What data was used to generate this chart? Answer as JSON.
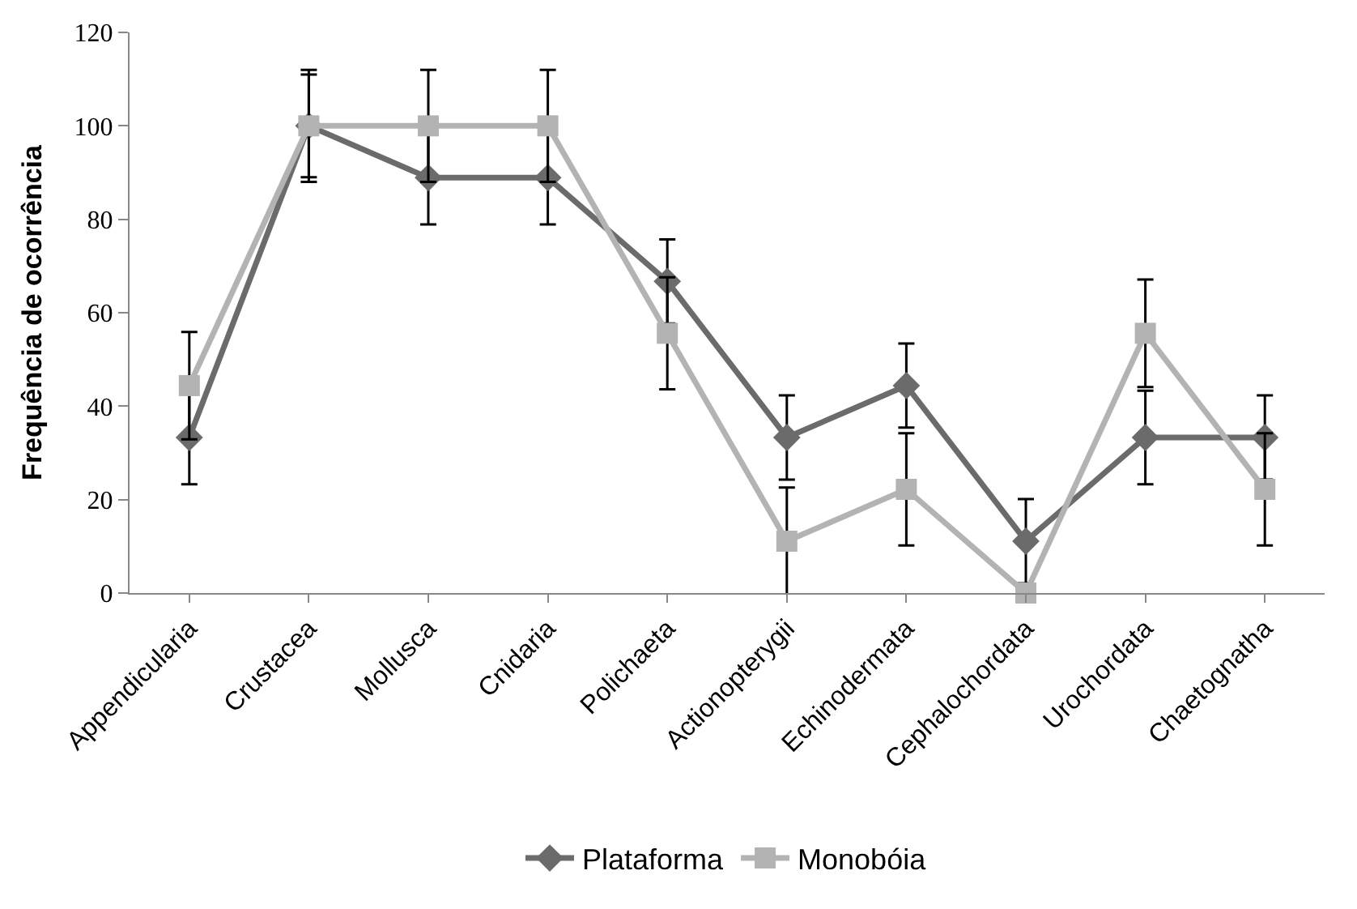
{
  "chart_data": {
    "type": "line",
    "ylabel": "Frequência de ocorrência",
    "categories": [
      "Appendicularia",
      "Crustacea",
      "Mollusca",
      "Cnidaria",
      "Polichaeta",
      "Actionopterygii",
      "Echinodermata",
      "Cephalochordata",
      "Urochordata",
      "Chaetognatha"
    ],
    "series": [
      {
        "name": "Plataforma",
        "color": "#6b6b6b",
        "marker": "diamond",
        "values": [
          33.3,
          100,
          88.9,
          88.9,
          66.7,
          33.3,
          44.4,
          11.1,
          33.3,
          33.3
        ],
        "errors": [
          10,
          11,
          10,
          10,
          9,
          9,
          9,
          9,
          10,
          9
        ]
      },
      {
        "name": "Monobóia",
        "color": "#b3b3b3",
        "marker": "square",
        "values": [
          44.4,
          100,
          100,
          100,
          55.6,
          11.1,
          22.2,
          0,
          55.6,
          22.2
        ],
        "errors": [
          11.5,
          12,
          12,
          12,
          12,
          11.5,
          12,
          null,
          11.5,
          12
        ]
      }
    ],
    "ylim": [
      0,
      120
    ],
    "yticks": [
      0,
      20,
      40,
      60,
      80,
      100,
      120
    ],
    "legend": "bottom",
    "line_style": "solid"
  }
}
